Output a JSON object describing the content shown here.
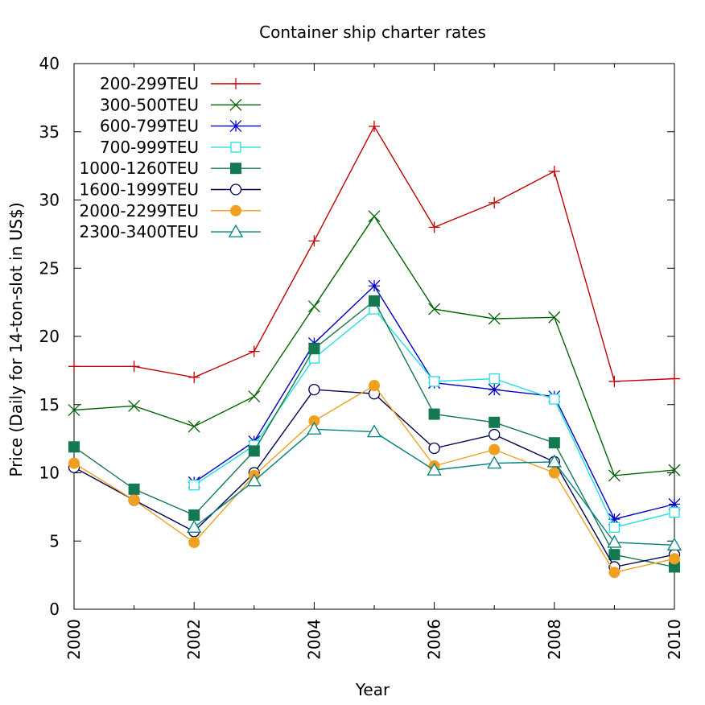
{
  "chart_data": {
    "type": "line",
    "title": "Container ship charter rates",
    "xlabel": "Year",
    "ylabel": "Price (Daily for 14-ton-slot in US$)",
    "xlim": [
      2000,
      2010
    ],
    "ylim": [
      0,
      40
    ],
    "x_ticks": [
      "2000",
      "2002",
      "2004",
      "2006",
      "2008",
      "2010"
    ],
    "y_ticks": [
      "0",
      "5",
      "10",
      "15",
      "20",
      "25",
      "30",
      "35",
      "40"
    ],
    "grid": false,
    "legend_position": "top-left",
    "x": [
      2000,
      2001,
      2002,
      2003,
      2004,
      2005,
      2006,
      2007,
      2008,
      2009,
      2010
    ],
    "series": [
      {
        "name": "200-299TEU",
        "color": "#c00000",
        "marker": "plus",
        "values": [
          17.8,
          17.8,
          17.0,
          18.9,
          27.0,
          35.4,
          28.0,
          29.8,
          32.1,
          16.7,
          16.9
        ]
      },
      {
        "name": "300-500TEU",
        "color": "#006400",
        "marker": "cross",
        "values": [
          14.6,
          14.9,
          13.4,
          15.6,
          22.2,
          28.8,
          22.0,
          21.3,
          21.4,
          9.8,
          10.2
        ]
      },
      {
        "name": "600-799TEU",
        "color": "#0000c0",
        "marker": "star",
        "values": [
          null,
          null,
          9.3,
          12.3,
          19.5,
          23.7,
          16.6,
          16.1,
          15.6,
          6.6,
          7.7
        ]
      },
      {
        "name": "700-999TEU",
        "color": "#20e0e0",
        "marker": "open-square",
        "values": [
          null,
          null,
          9.1,
          12.0,
          18.4,
          22.0,
          16.7,
          16.9,
          15.4,
          6.0,
          7.1
        ]
      },
      {
        "name": "1000-1260TEU",
        "color": "#147850",
        "marker": "filled-square",
        "values": [
          11.9,
          8.8,
          6.9,
          11.6,
          19.1,
          22.6,
          14.3,
          13.7,
          12.2,
          4.0,
          3.1
        ]
      },
      {
        "name": "1600-1999TEU",
        "color": "#000050",
        "marker": "open-circle",
        "values": [
          10.4,
          8.0,
          5.7,
          10.0,
          16.1,
          15.8,
          11.8,
          12.8,
          10.8,
          3.1,
          4.0
        ]
      },
      {
        "name": "2000-2299TEU",
        "color": "#f0a020",
        "marker": "filled-circle",
        "values": [
          10.7,
          8.0,
          4.9,
          9.8,
          13.8,
          16.4,
          10.5,
          11.7,
          10.0,
          2.7,
          3.7
        ]
      },
      {
        "name": "2300-3400TEU",
        "color": "#008080",
        "marker": "open-triangle",
        "values": [
          null,
          null,
          6.0,
          9.4,
          13.2,
          13.0,
          10.2,
          10.7,
          10.8,
          4.9,
          4.7
        ]
      }
    ]
  }
}
